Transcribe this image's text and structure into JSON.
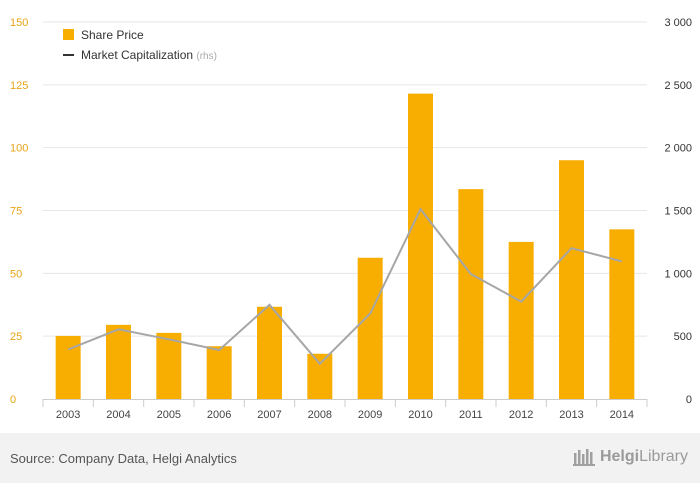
{
  "chart_data": {
    "type": "bar+line",
    "categories": [
      "2003",
      "2004",
      "2005",
      "2006",
      "2007",
      "2008",
      "2009",
      "2010",
      "2011",
      "2012",
      "2013",
      "2014"
    ],
    "series": [
      {
        "name": "Share Price",
        "type": "bar",
        "axis": "left",
        "values": [
          25.1,
          29.5,
          26.3,
          21.0,
          36.7,
          18.0,
          56.2,
          121.5,
          83.5,
          62.5,
          95.0,
          67.5
        ]
      },
      {
        "name": "Market Capitalization",
        "name_suffix": "(rhs)",
        "type": "line",
        "axis": "right",
        "values": [
          395,
          555,
          475,
          390,
          750,
          280,
          680,
          1510,
          995,
          775,
          1200,
          1095
        ]
      }
    ],
    "left_axis": {
      "ylim": [
        0,
        150
      ],
      "ticks": [
        "0",
        "25",
        "50",
        "75",
        "100",
        "125",
        "150"
      ]
    },
    "right_axis": {
      "ylim": [
        0,
        3000
      ],
      "ticks": [
        "0",
        "500",
        "1 000",
        "1 500",
        "2 000",
        "2 500",
        "3 000"
      ]
    },
    "legend_position": "top-left",
    "grid": true,
    "colors": {
      "bar": "#F7AE00",
      "line": "#A6A6A6",
      "left_tick": "#E8A317",
      "right_tick": "#333333"
    }
  },
  "footer": {
    "source": "Source: Company Data, Helgi Analytics",
    "logo_part1": "Helgi",
    "logo_part2": "Library"
  }
}
